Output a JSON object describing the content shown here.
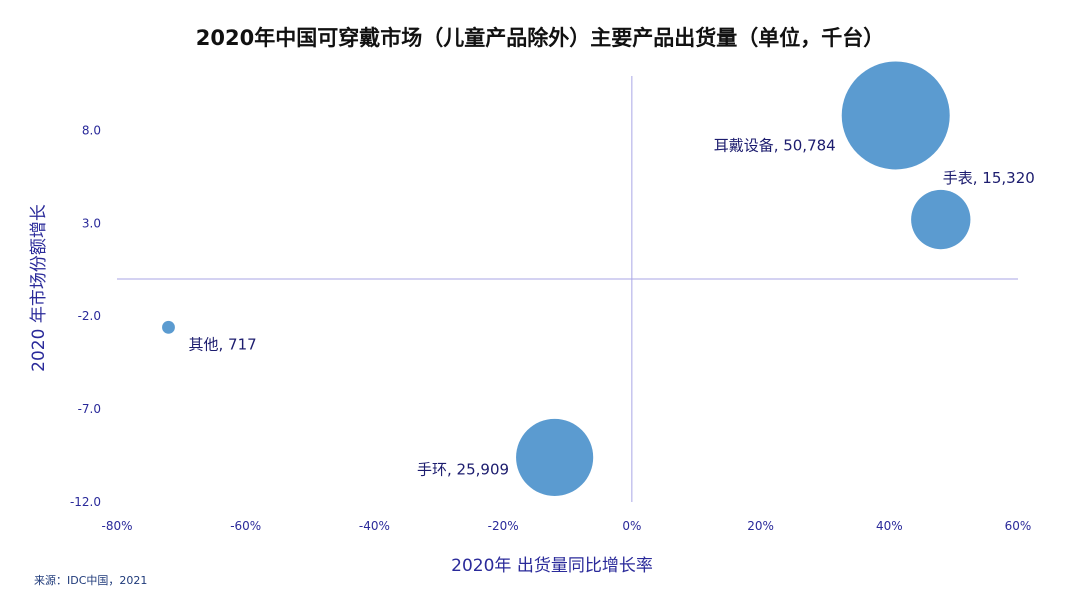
{
  "source": "来源：IDC中国，2021",
  "chart_data": {
    "type": "bubble",
    "title": "2020年中国可穿戴市场（儿童产品除外）主要产品出货量（单位，千台）",
    "xlabel": "2020年 出货量同比增长率",
    "ylabel": "2020 年市场份额增长",
    "xlim": [
      -80,
      60
    ],
    "ylim": [
      -12,
      12
    ],
    "x_ticks": [
      -80,
      -60,
      -40,
      -20,
      0,
      20,
      40,
      60
    ],
    "x_tick_labels": [
      "-80%",
      "-60%",
      "-40%",
      "-20%",
      "0%",
      "20%",
      "40%",
      "60%"
    ],
    "y_ticks": [
      8,
      3,
      -2,
      -7,
      -12
    ],
    "y_tick_labels": [
      "8.0",
      "3.0",
      "-2.0",
      "-7.0",
      "-12.0"
    ],
    "grid": false,
    "points": [
      {
        "name": "耳戴设备",
        "x": 41,
        "y": 8.8,
        "size": 50784,
        "label": "耳戴设备, 50,784",
        "label_pos": "left-below"
      },
      {
        "name": "手表",
        "x": 48,
        "y": 3.2,
        "size": 15320,
        "label": "手表, 15,320",
        "label_pos": "above-right"
      },
      {
        "name": "其他",
        "x": -72,
        "y": -2.6,
        "size": 717,
        "label": "其他, 717",
        "label_pos": "right-below"
      },
      {
        "name": "手环",
        "x": -12,
        "y": -9.6,
        "size": 25909,
        "label": "手环, 25,909",
        "label_pos": "left"
      }
    ],
    "colors": {
      "bubble": "#5b9bd0",
      "axis_line": "#a9a6e6",
      "text": "#2a2a9a"
    }
  }
}
